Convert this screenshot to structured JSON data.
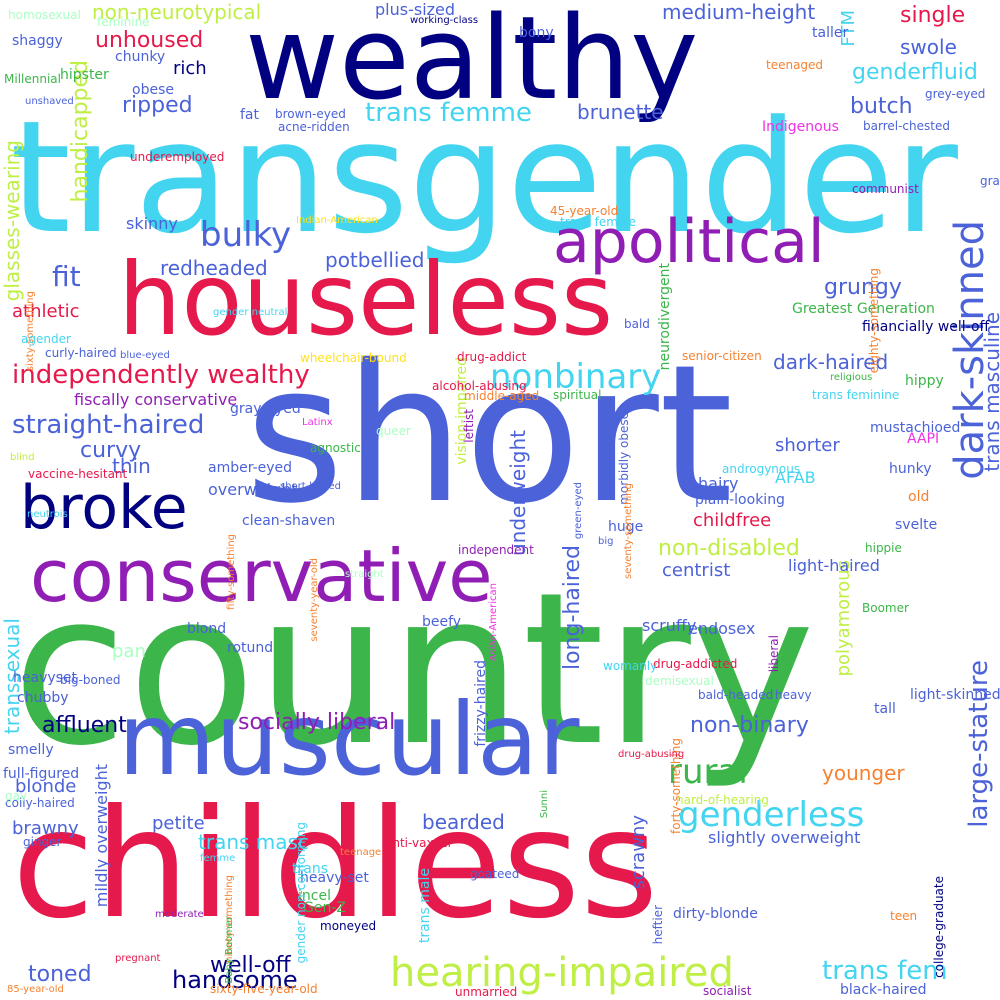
{
  "words": [
    {
      "text": "country",
      "color": "#3cb54a",
      "vertical": false
    },
    {
      "text": "short",
      "color": "#4b62d8",
      "vertical": false
    },
    {
      "text": "transgender",
      "color": "#43d4f0",
      "vertical": false
    },
    {
      "text": "childless",
      "color": "#e5194b",
      "vertical": false
    },
    {
      "text": "wealthy",
      "color": "#000080",
      "vertical": false
    },
    {
      "text": "houseless",
      "color": "#e5194b",
      "vertical": false
    },
    {
      "text": "muscular",
      "color": "#4b62d8",
      "vertical": false
    },
    {
      "text": "conservative",
      "color": "#911eb4",
      "vertical": false
    },
    {
      "text": "apolitical",
      "color": "#911eb4",
      "vertical": false
    },
    {
      "text": "broke",
      "color": "#000080",
      "vertical": false
    },
    {
      "text": "hearing-impaired",
      "color": "#bfef45",
      "vertical": false
    },
    {
      "text": "dark-skinned",
      "color": "#4b62d8",
      "vertical": true
    },
    {
      "text": "nonbinary",
      "color": "#43d4f0",
      "vertical": false
    },
    {
      "text": "genderless",
      "color": "#43d4f0",
      "vertical": false
    },
    {
      "text": "rural",
      "color": "#3cb54a",
      "vertical": false
    },
    {
      "text": "bulky",
      "color": "#4b62d8",
      "vertical": false
    },
    {
      "text": "independently wealthy",
      "color": "#e5194b",
      "vertical": false
    },
    {
      "text": "large-stature",
      "color": "#4b62d8",
      "vertical": true
    },
    {
      "text": "trans masculine",
      "color": "#4b62d8",
      "vertical": true
    },
    {
      "text": "straight-haired",
      "color": "#4b62d8",
      "vertical": false
    },
    {
      "text": "non-disabled",
      "color": "#bfef45",
      "vertical": false
    },
    {
      "text": "trans femme",
      "color": "#43d4f0",
      "vertical": false
    },
    {
      "text": "handicapped",
      "color": "#bfef45",
      "vertical": true
    },
    {
      "text": "glasses-wearing",
      "color": "#bfef45",
      "vertical": true
    },
    {
      "text": "long-haired",
      "color": "#4b62d8",
      "vertical": true
    },
    {
      "text": "trans fem",
      "color": "#43d4f0",
      "vertical": false
    },
    {
      "text": "well-off",
      "color": "#000080",
      "vertical": false
    },
    {
      "text": "socially liberal",
      "color": "#911eb4",
      "vertical": false
    },
    {
      "text": "handsome",
      "color": "#000080",
      "vertical": false
    },
    {
      "text": "affluent",
      "color": "#000080",
      "vertical": false
    },
    {
      "text": "non-binary",
      "color": "#4b62d8",
      "vertical": false
    },
    {
      "text": "ripped",
      "color": "#4b62d8",
      "vertical": false
    },
    {
      "text": "curvy",
      "color": "#4b62d8",
      "vertical": false
    },
    {
      "text": "grungy",
      "color": "#4b62d8",
      "vertical": false
    },
    {
      "text": "transsexual",
      "color": "#43d4f0",
      "vertical": true
    },
    {
      "text": "genderfluid",
      "color": "#43d4f0",
      "vertical": false
    },
    {
      "text": "scrawny",
      "color": "#4b62d8",
      "vertical": true
    },
    {
      "text": "butch",
      "color": "#4b62d8",
      "vertical": false
    },
    {
      "text": "toned",
      "color": "#4b62d8",
      "vertical": false
    },
    {
      "text": "younger",
      "color": "#f58231",
      "vertical": false
    },
    {
      "text": "underweight",
      "color": "#4b62d8",
      "vertical": true
    },
    {
      "text": "unhoused",
      "color": "#e5194b",
      "vertical": false
    },
    {
      "text": "fit",
      "color": "#4b62d8",
      "vertical": false
    },
    {
      "text": "redheaded",
      "color": "#4b62d8",
      "vertical": false
    },
    {
      "text": "potbellied",
      "color": "#4b62d8",
      "vertical": false
    },
    {
      "text": "dark-haired",
      "color": "#4b62d8",
      "vertical": false
    },
    {
      "text": "brunette",
      "color": "#4b62d8",
      "vertical": false
    },
    {
      "text": "medium-height",
      "color": "#4b62d8",
      "vertical": false
    },
    {
      "text": "non-neurotypical",
      "color": "#bfef45",
      "vertical": false
    },
    {
      "text": "bearded",
      "color": "#4b62d8",
      "vertical": false
    },
    {
      "text": "trans masc",
      "color": "#43d4f0",
      "vertical": false
    },
    {
      "text": "single",
      "color": "#e5194b",
      "vertical": false
    },
    {
      "text": "swole",
      "color": "#4b62d8",
      "vertical": false
    },
    {
      "text": "childfree",
      "color": "#e5194b",
      "vertical": false
    },
    {
      "text": "centrist",
      "color": "#4b62d8",
      "vertical": false
    },
    {
      "text": "shorter",
      "color": "#4b62d8",
      "vertical": false
    },
    {
      "text": "blonde",
      "color": "#4b62d8",
      "vertical": false
    },
    {
      "text": "brawny",
      "color": "#4b62d8",
      "vertical": false
    },
    {
      "text": "petite",
      "color": "#4b62d8",
      "vertical": false
    },
    {
      "text": "thin",
      "color": "#4b62d8",
      "vertical": false
    },
    {
      "text": "skinny",
      "color": "#4b62d8",
      "vertical": false
    },
    {
      "text": "rich",
      "color": "#000080",
      "vertical": false
    },
    {
      "text": "athletic",
      "color": "#e5194b",
      "vertical": false
    },
    {
      "text": "polyamorous",
      "color": "#bfef45",
      "vertical": true
    },
    {
      "text": "FTM",
      "color": "#43d4f0",
      "vertical": true
    },
    {
      "text": "AFAB",
      "color": "#43d4f0",
      "vertical": false
    },
    {
      "text": "overweight",
      "color": "#4b62d8",
      "vertical": false
    },
    {
      "text": "fiscally conservative",
      "color": "#911eb4",
      "vertical": false
    },
    {
      "text": "plus-sized",
      "color": "#4b62d8",
      "vertical": false
    },
    {
      "text": "hairy",
      "color": "#4b62d8",
      "vertical": false
    },
    {
      "text": "light-haired",
      "color": "#4b62d8",
      "vertical": false
    },
    {
      "text": "scruffy",
      "color": "#4b62d8",
      "vertical": false
    },
    {
      "text": "endosex",
      "color": "#4b62d8",
      "vertical": false
    },
    {
      "text": "slightly overweight",
      "color": "#4b62d8",
      "vertical": false
    },
    {
      "text": "mildly overweight",
      "color": "#4b62d8",
      "vertical": true
    },
    {
      "text": "light-skinned",
      "color": "#4b62d8",
      "vertical": false
    },
    {
      "text": "frizzy-haired",
      "color": "#4b62d8",
      "vertical": true
    },
    {
      "text": "neurodivergent",
      "color": "#3cb54a",
      "vertical": true
    },
    {
      "text": "Greatest Generation",
      "color": "#3cb54a",
      "vertical": false
    },
    {
      "text": "financially well-off",
      "color": "#000080",
      "vertical": false
    },
    {
      "text": "Indigenous",
      "color": "#f032e6",
      "vertical": false
    },
    {
      "text": "vision-impaired",
      "color": "#bfef45",
      "vertical": true
    },
    {
      "text": "hippy",
      "color": "#3cb54a",
      "vertical": false
    },
    {
      "text": "AAPI",
      "color": "#f032e6",
      "vertical": false
    },
    {
      "text": "old",
      "color": "#f58231",
      "vertical": false
    },
    {
      "text": "plain-looking",
      "color": "#4b62d8",
      "vertical": false
    },
    {
      "text": "mustachioed",
      "color": "#4b62d8",
      "vertical": false
    },
    {
      "text": "hunky",
      "color": "#4b62d8",
      "vertical": false
    },
    {
      "text": "svelte",
      "color": "#4b62d8",
      "vertical": false
    },
    {
      "text": "shaggy",
      "color": "#4b62d8",
      "vertical": false
    },
    {
      "text": "chunky",
      "color": "#4b62d8",
      "vertical": false
    },
    {
      "text": "hipster",
      "color": "#3cb54a",
      "vertical": false
    },
    {
      "text": "obese",
      "color": "#4b62d8",
      "vertical": false
    },
    {
      "text": "fat",
      "color": "#4b62d8",
      "vertical": false
    },
    {
      "text": "taller",
      "color": "#4b62d8",
      "vertical": false
    },
    {
      "text": "bony",
      "color": "#4b62d8",
      "vertical": false
    },
    {
      "text": "huge",
      "color": "#4b62d8",
      "vertical": false
    },
    {
      "text": "heavyset",
      "color": "#4b62d8",
      "vertical": false
    },
    {
      "text": "chubby",
      "color": "#4b62d8",
      "vertical": false
    },
    {
      "text": "smelly",
      "color": "#4b62d8",
      "vertical": false
    },
    {
      "text": "full-figured",
      "color": "#4b62d8",
      "vertical": false
    },
    {
      "text": "pan",
      "color": "#aaffc3",
      "vertical": false
    },
    {
      "text": "clean-shaven",
      "color": "#4b62d8",
      "vertical": false
    },
    {
      "text": "gray-eyed",
      "color": "#4b62d8",
      "vertical": false
    },
    {
      "text": "amber-eyed",
      "color": "#4b62d8",
      "vertical": false
    },
    {
      "text": "beefy",
      "color": "#4b62d8",
      "vertical": false
    },
    {
      "text": "blond",
      "color": "#4b62d8",
      "vertical": false
    },
    {
      "text": "rotund",
      "color": "#4b62d8",
      "vertical": false
    },
    {
      "text": "heavy-set",
      "color": "#4b62d8",
      "vertical": false
    },
    {
      "text": "incel",
      "color": "#3cb54a",
      "vertical": false
    },
    {
      "text": "Gen-Z",
      "color": "#3cb54a",
      "vertical": false
    },
    {
      "text": "moneyed",
      "color": "#000080",
      "vertical": false
    },
    {
      "text": "tall",
      "color": "#4b62d8",
      "vertical": false
    },
    {
      "text": "heftier",
      "color": "#4b62d8",
      "vertical": true
    },
    {
      "text": "dirty-blonde",
      "color": "#4b62d8",
      "vertical": false
    },
    {
      "text": "black-haired",
      "color": "#4b62d8",
      "vertical": false
    },
    {
      "text": "trans male",
      "color": "#43d4f0",
      "vertical": true
    },
    {
      "text": "trans",
      "color": "#43d4f0",
      "vertical": false
    },
    {
      "text": "anti-vaxxer",
      "color": "#e5194b",
      "vertical": false
    },
    {
      "text": "homosexual",
      "color": "#aaffc3",
      "vertical": false
    },
    {
      "text": "feminine",
      "color": "#aaffc3",
      "vertical": false
    },
    {
      "text": "Millennial",
      "color": "#3cb54a",
      "vertical": false
    },
    {
      "text": "unshaved",
      "color": "#4b62d8",
      "vertical": false
    },
    {
      "text": "working-class",
      "color": "#000080",
      "vertical": false
    },
    {
      "text": "teenaged",
      "color": "#f58231",
      "vertical": false
    },
    {
      "text": "grey-eyed",
      "color": "#4b62d8",
      "vertical": false
    },
    {
      "text": "barrel-chested",
      "color": "#4b62d8",
      "vertical": false
    },
    {
      "text": "brown-eyed",
      "color": "#4b62d8",
      "vertical": false
    },
    {
      "text": "acne-ridden",
      "color": "#4b62d8",
      "vertical": false
    },
    {
      "text": "underemployed",
      "color": "#e5194b",
      "vertical": false
    },
    {
      "text": "communist",
      "color": "#911eb4",
      "vertical": false
    },
    {
      "text": "Indian-American",
      "color": "#ffe119",
      "vertical": false
    },
    {
      "text": "trans female",
      "color": "#43d4f0",
      "vertical": false
    },
    {
      "text": "gray-haired",
      "color": "#4b62d8",
      "vertical": false
    },
    {
      "text": "eighty-something",
      "color": "#f58231",
      "vertical": true
    },
    {
      "text": "45-year-old",
      "color": "#f58231",
      "vertical": false
    },
    {
      "text": "sixty-something",
      "color": "#f58231",
      "vertical": true
    },
    {
      "text": "gender neutral",
      "color": "#43d4f0",
      "vertical": false
    },
    {
      "text": "bald",
      "color": "#4b62d8",
      "vertical": false
    },
    {
      "text": "agender",
      "color": "#43d4f0",
      "vertical": false
    },
    {
      "text": "curly-haired",
      "color": "#4b62d8",
      "vertical": false
    },
    {
      "text": "blue-eyed",
      "color": "#4b62d8",
      "vertical": false
    },
    {
      "text": "wheelchair-bound",
      "color": "#ffe119",
      "vertical": false
    },
    {
      "text": "drug-addict",
      "color": "#e5194b",
      "vertical": false
    },
    {
      "text": "senior-citizen",
      "color": "#f58231",
      "vertical": false
    },
    {
      "text": "alcohol-abusing",
      "color": "#e5194b",
      "vertical": false
    },
    {
      "text": "religious",
      "color": "#3cb54a",
      "vertical": false
    },
    {
      "text": "Latinx",
      "color": "#f032e6",
      "vertical": false
    },
    {
      "text": "middle-aged",
      "color": "#f58231",
      "vertical": false
    },
    {
      "text": "spiritual",
      "color": "#3cb54a",
      "vertical": false
    },
    {
      "text": "trans feminine",
      "color": "#43d4f0",
      "vertical": false
    },
    {
      "text": "agnostic",
      "color": "#3cb54a",
      "vertical": false
    },
    {
      "text": "androgynous",
      "color": "#43d4f0",
      "vertical": false
    },
    {
      "text": "vaccine-hesitant",
      "color": "#e5194b",
      "vertical": false
    },
    {
      "text": "neutrois",
      "color": "#43d4f0",
      "vertical": false
    },
    {
      "text": "blind",
      "color": "#bfef45",
      "vertical": false
    },
    {
      "text": "green-eyed",
      "color": "#4b62d8",
      "vertical": true
    },
    {
      "text": "queer",
      "color": "#aaffc3",
      "vertical": false
    },
    {
      "text": "leftist",
      "color": "#911eb4",
      "vertical": true
    },
    {
      "text": "morbidly obese",
      "color": "#4b62d8",
      "vertical": true
    },
    {
      "text": "seventy-something",
      "color": "#f58231",
      "vertical": true
    },
    {
      "text": "fifty-something",
      "color": "#f58231",
      "vertical": true
    },
    {
      "text": "independent",
      "color": "#911eb4",
      "vertical": false
    },
    {
      "text": "big",
      "color": "#4b62d8",
      "vertical": false
    },
    {
      "text": "hippie",
      "color": "#3cb54a",
      "vertical": false
    },
    {
      "text": "Boomer",
      "color": "#3cb54a",
      "vertical": false
    },
    {
      "text": "short-haired",
      "color": "#4b62d8",
      "vertical": false
    },
    {
      "text": "seventy-year-old",
      "color": "#f58231",
      "vertical": true
    },
    {
      "text": "straight",
      "color": "#aaffc3",
      "vertical": false
    },
    {
      "text": "Asian-American",
      "color": "#f032e6",
      "vertical": true
    },
    {
      "text": "liberal",
      "color": "#911eb4",
      "vertical": true
    },
    {
      "text": "big-boned",
      "color": "#4b62d8",
      "vertical": false
    },
    {
      "text": "drug-addicted",
      "color": "#e5194b",
      "vertical": false
    },
    {
      "text": "demisexual",
      "color": "#aaffc3",
      "vertical": false
    },
    {
      "text": "bald-headed",
      "color": "#4b62d8",
      "vertical": false
    },
    {
      "text": "heavy",
      "color": "#4b62d8",
      "vertical": false
    },
    {
      "text": "womanly",
      "color": "#43d4f0",
      "vertical": false
    },
    {
      "text": "forty-something",
      "color": "#f58231",
      "vertical": true
    },
    {
      "text": "hard-of-hearing",
      "color": "#bfef45",
      "vertical": false
    },
    {
      "text": "coily-haired",
      "color": "#4b62d8",
      "vertical": false
    },
    {
      "text": "drug-abusing",
      "color": "#e5194b",
      "vertical": false
    },
    {
      "text": "gender non-conforming",
      "color": "#43d4f0",
      "vertical": true
    },
    {
      "text": "ginger",
      "color": "#4b62d8",
      "vertical": false
    },
    {
      "text": "teenage",
      "color": "#f58231",
      "vertical": false
    },
    {
      "text": "gay",
      "color": "#aaffc3",
      "vertical": false
    },
    {
      "text": "ninety-something",
      "color": "#f58231",
      "vertical": true
    },
    {
      "text": "goateed",
      "color": "#4b62d8",
      "vertical": false
    },
    {
      "text": "Sunni",
      "color": "#3cb54a",
      "vertical": true
    },
    {
      "text": "college-graduate",
      "color": "#000080",
      "vertical": true
    },
    {
      "text": "moderate",
      "color": "#911eb4",
      "vertical": false
    },
    {
      "text": "femme",
      "color": "#43d4f0",
      "vertical": false
    },
    {
      "text": "Baby Boomer",
      "color": "#3cb54a",
      "vertical": true
    },
    {
      "text": "teen",
      "color": "#f58231",
      "vertical": false
    },
    {
      "text": "pregnant",
      "color": "#e5194b",
      "vertical": false
    },
    {
      "text": "85-year-old",
      "color": "#f58231",
      "vertical": false
    },
    {
      "text": "sixty-five-year-old",
      "color": "#f58231",
      "vertical": false
    },
    {
      "text": "unmarried",
      "color": "#e5194b",
      "vertical": false
    },
    {
      "text": "socialist",
      "color": "#911eb4",
      "vertical": false
    },
    {
      "text": "wheelchair-user",
      "color": "#bfef45",
      "vertical": false
    }
  ]
}
